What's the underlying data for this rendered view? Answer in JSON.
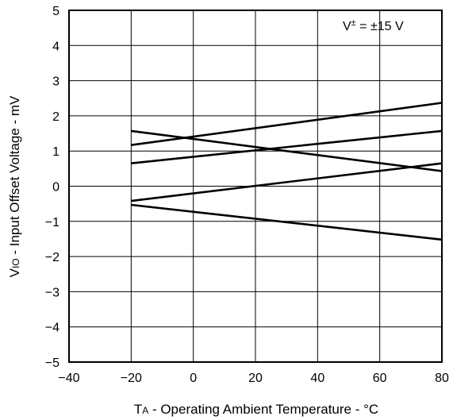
{
  "chart_data": {
    "type": "line",
    "title": "",
    "xlabel_main": "T",
    "xlabel_sub": "A",
    "xlabel_rest": " - Operating Ambient Temperature - °C",
    "ylabel_main": "V",
    "ylabel_sub": "IO",
    "ylabel_rest": " - Input Offset Voltage - mV",
    "annotation_main": "V",
    "annotation_sup": "±",
    "annotation_rest": " = ±15 V",
    "xlim": [
      -40,
      80
    ],
    "ylim": [
      -5,
      5
    ],
    "x_ticks": [
      "−40",
      "−20",
      "0",
      "20",
      "40",
      "60",
      "80"
    ],
    "y_ticks": [
      "5",
      "4",
      "3",
      "2",
      "1",
      "0",
      "−1",
      "−2",
      "−3",
      "−4",
      "−5"
    ],
    "grid": true,
    "series": [
      {
        "x": [
          -20,
          80
        ],
        "y": [
          1.17,
          2.37
        ]
      },
      {
        "x": [
          -20,
          80
        ],
        "y": [
          0.65,
          1.57
        ]
      },
      {
        "x": [
          -20,
          80
        ],
        "y": [
          1.57,
          0.43
        ]
      },
      {
        "x": [
          -20,
          80
        ],
        "y": [
          -0.42,
          0.65
        ]
      },
      {
        "x": [
          -20,
          80
        ],
        "y": [
          -0.53,
          -1.52
        ]
      }
    ]
  }
}
